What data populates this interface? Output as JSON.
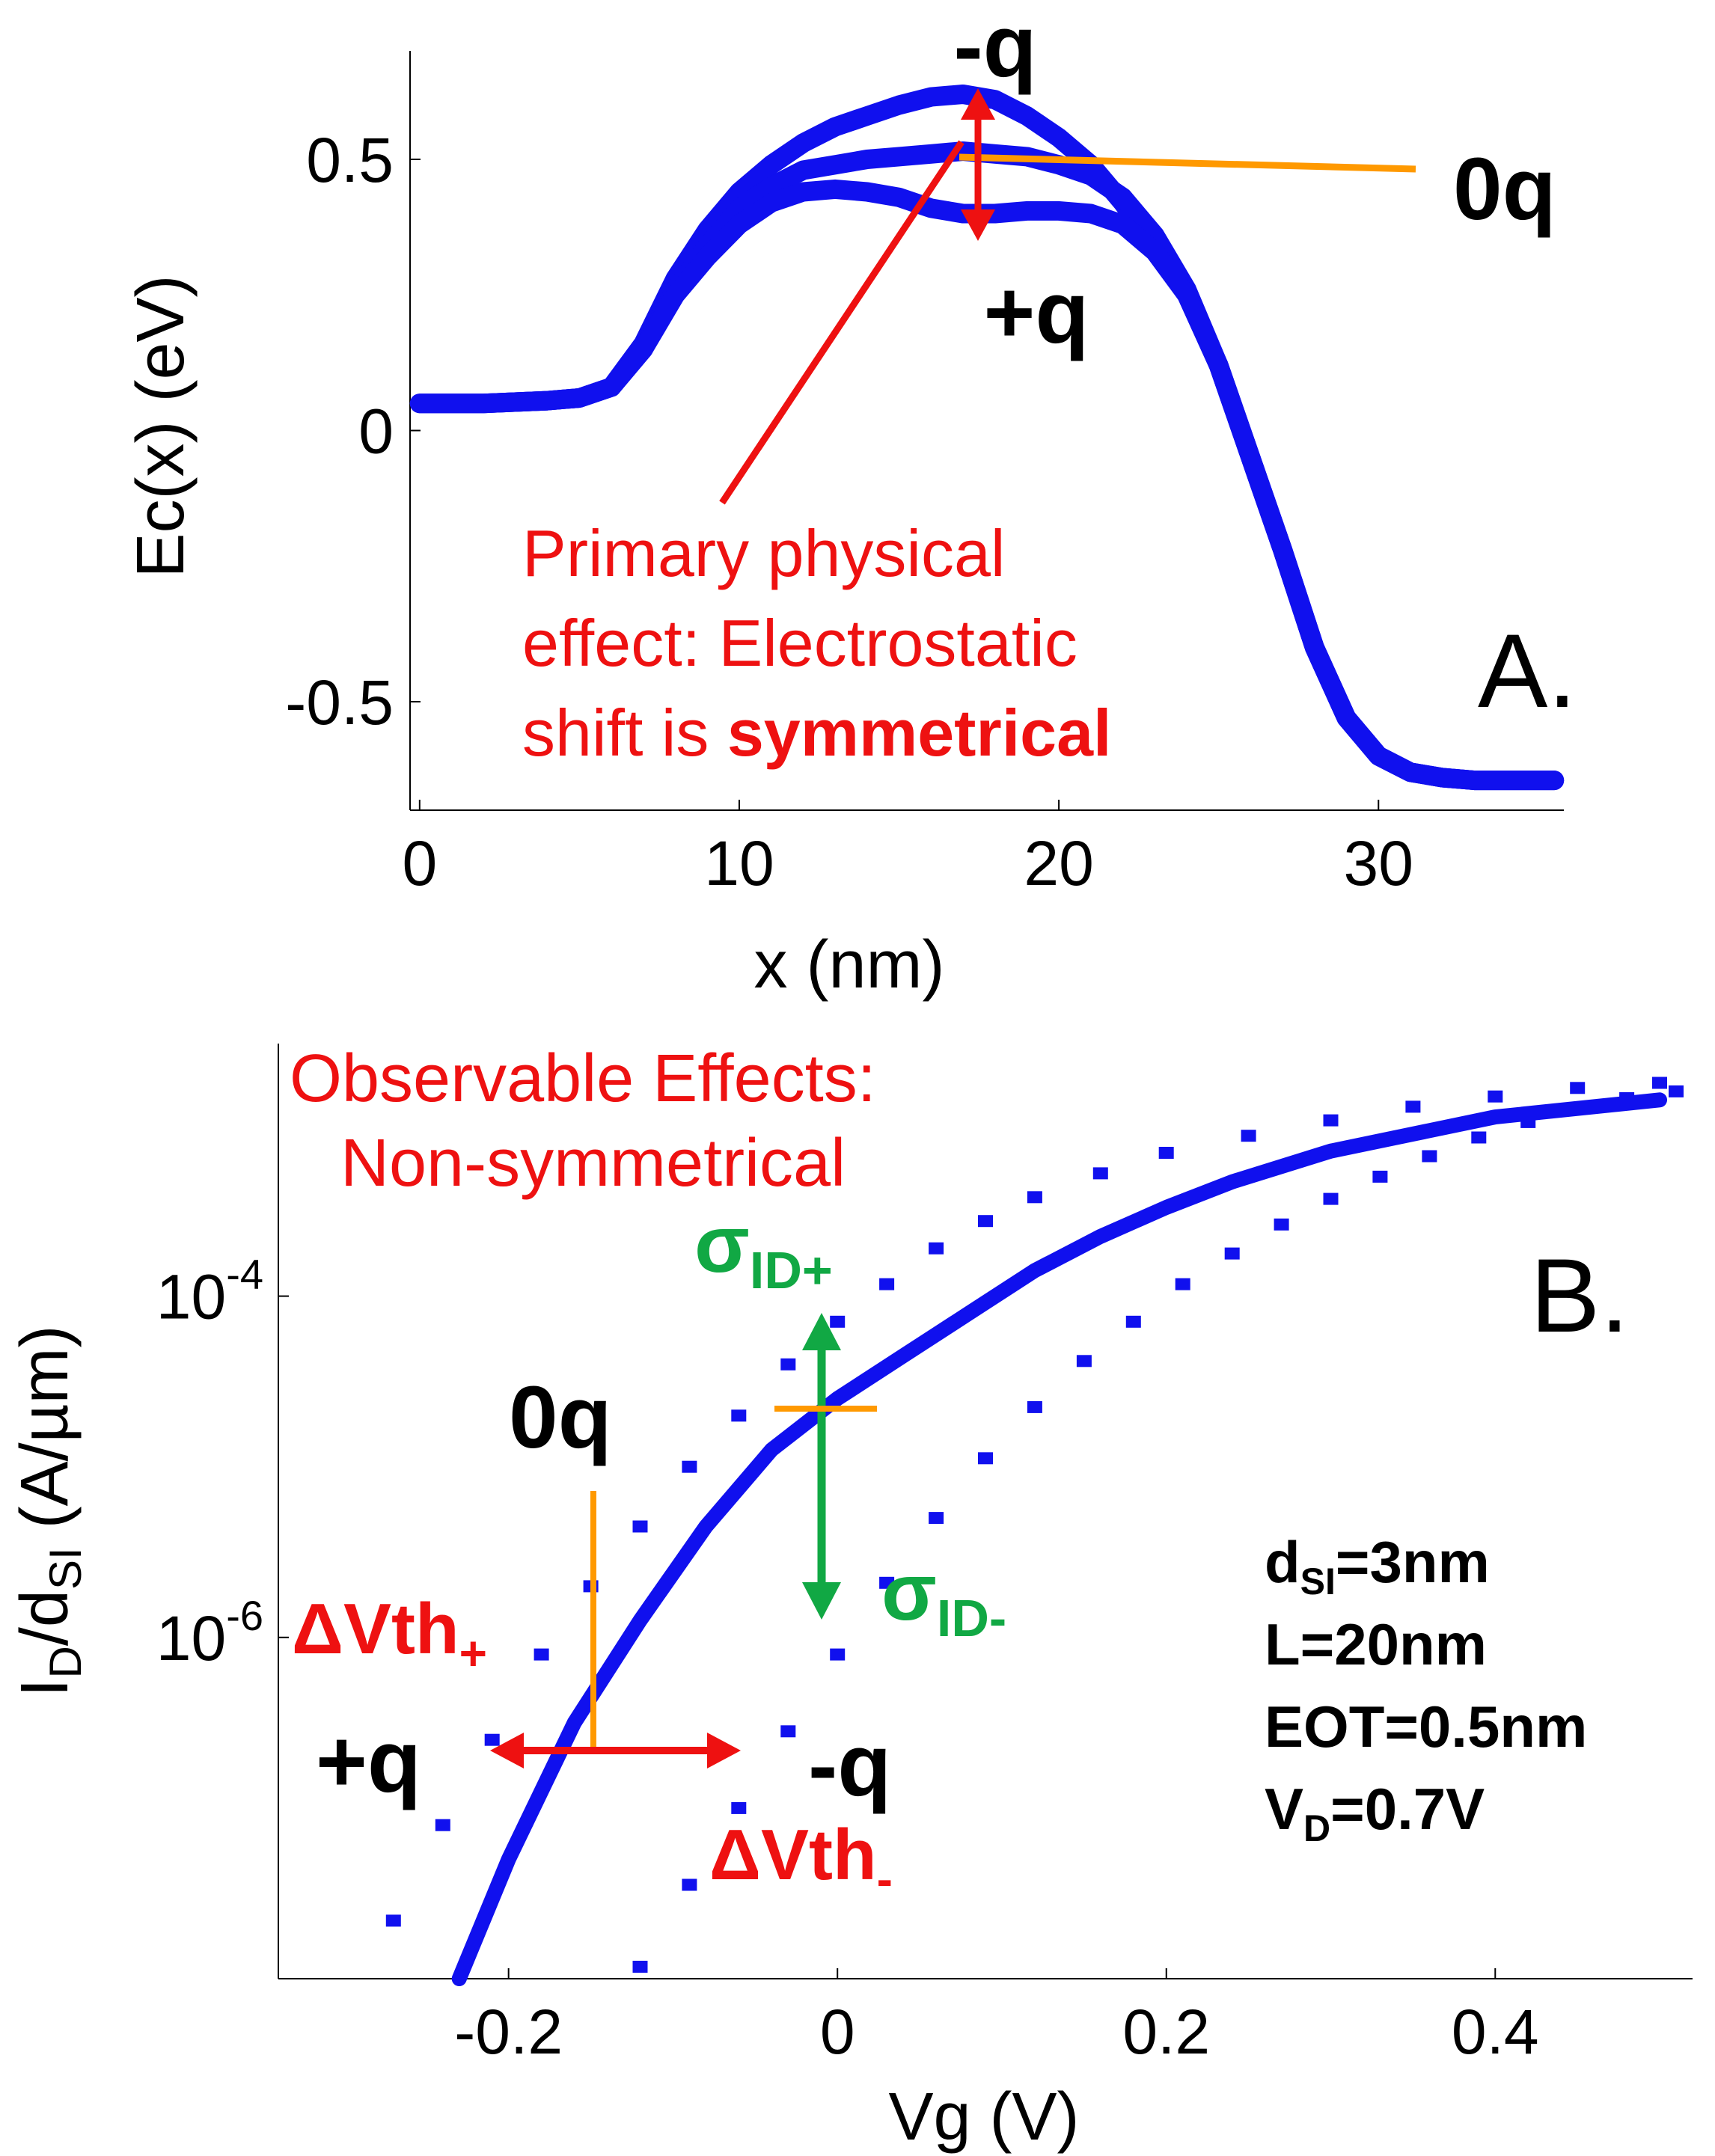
{
  "chart_data": [
    {
      "id": "A",
      "type": "line",
      "panel_label": "A.",
      "xlabel": "x (nm)",
      "ylabel": "Ec(x) (eV)",
      "xlim": [
        -0.3,
        35.8
      ],
      "ylim": [
        -0.7,
        0.7
      ],
      "xticks": [
        0,
        10,
        20,
        30
      ],
      "xtick_labels": [
        "0",
        "10",
        "20",
        "30"
      ],
      "yticks": [
        -0.5,
        0,
        0.5
      ],
      "ytick_labels": [
        "-0.5",
        "0",
        "0.5"
      ],
      "series": [
        {
          "name": "-q",
          "x": [
            0,
            2,
            4,
            5,
            6,
            7,
            8,
            9,
            10,
            11,
            12,
            13,
            14,
            15,
            16,
            17,
            18,
            19,
            20,
            21,
            22,
            23,
            24,
            25,
            26,
            27,
            28,
            29,
            30,
            31,
            32,
            33,
            34,
            35.5
          ],
          "y": [
            0.05,
            0.05,
            0.055,
            0.06,
            0.08,
            0.16,
            0.28,
            0.37,
            0.44,
            0.49,
            0.53,
            0.56,
            0.58,
            0.6,
            0.615,
            0.62,
            0.61,
            0.58,
            0.54,
            0.49,
            0.42,
            0.34,
            0.25,
            0.12,
            -0.05,
            -0.22,
            -0.4,
            -0.53,
            -0.6,
            -0.63,
            -0.64,
            -0.645,
            -0.645,
            -0.645
          ]
        },
        {
          "name": "0q",
          "x": [
            0,
            2,
            4,
            5,
            6,
            7,
            8,
            9,
            10,
            11,
            12,
            13,
            14,
            15,
            16,
            17,
            18,
            19,
            20,
            21,
            22,
            23,
            24,
            25,
            26,
            27,
            28,
            29,
            30,
            31,
            32,
            33,
            34,
            35.5
          ],
          "y": [
            0.05,
            0.05,
            0.055,
            0.06,
            0.08,
            0.15,
            0.26,
            0.34,
            0.41,
            0.45,
            0.48,
            0.49,
            0.5,
            0.505,
            0.51,
            0.515,
            0.51,
            0.505,
            0.49,
            0.47,
            0.43,
            0.36,
            0.26,
            0.12,
            -0.05,
            -0.22,
            -0.4,
            -0.53,
            -0.6,
            -0.63,
            -0.64,
            -0.645,
            -0.645,
            -0.645
          ]
        },
        {
          "name": "+q",
          "x": [
            0,
            2,
            4,
            5,
            6,
            7,
            8,
            9,
            10,
            11,
            12,
            13,
            14,
            15,
            16,
            17,
            18,
            19,
            20,
            21,
            22,
            23,
            24,
            25,
            26,
            27,
            28,
            29,
            30,
            31,
            32,
            33,
            34,
            35.5
          ],
          "y": [
            0.05,
            0.05,
            0.055,
            0.06,
            0.08,
            0.15,
            0.25,
            0.32,
            0.38,
            0.42,
            0.44,
            0.445,
            0.44,
            0.43,
            0.41,
            0.4,
            0.4,
            0.405,
            0.405,
            0.4,
            0.38,
            0.33,
            0.25,
            0.12,
            -0.05,
            -0.22,
            -0.4,
            -0.53,
            -0.6,
            -0.63,
            -0.64,
            -0.645,
            -0.645,
            -0.645
          ]
        }
      ],
      "annotations": {
        "minus_q": "-q",
        "zero_q": "0q",
        "plus_q": "+q",
        "effect_line1": "Primary physical",
        "effect_line2": "effect: Electrostatic",
        "effect_line3_normal": "shift is ",
        "effect_line3_bold": "symmetrical"
      }
    },
    {
      "id": "B",
      "type": "scatter",
      "panel_label": "B.",
      "xlabel": "Vg (V)",
      "ylabel_main": "I",
      "ylabel_sub1": "D",
      "ylabel_mid": "/d",
      "ylabel_sub2": "SI",
      "ylabel_tail": " (A/µm)",
      "yscale": "log",
      "xlim": [
        -0.34,
        0.52
      ],
      "log10_ylim": [
        -8.0,
        -2.52
      ],
      "xticks": [
        -0.2,
        0,
        0.2,
        0.4
      ],
      "xtick_labels": [
        "-0.2",
        "0",
        "0.2",
        "0.4"
      ],
      "yticks_log10": [
        -4,
        -6
      ],
      "ytick_base": "10",
      "ytick_exponents": [
        "-4",
        "-6"
      ],
      "series": [
        {
          "name": "0q",
          "style": "solid",
          "x": [
            -0.23,
            -0.2,
            -0.16,
            -0.12,
            -0.08,
            -0.04,
            0,
            0.04,
            0.08,
            0.12,
            0.16,
            0.2,
            0.24,
            0.3,
            0.4,
            0.5
          ],
          "log10_y": [
            -8.0,
            -7.3,
            -6.5,
            -5.9,
            -5.35,
            -4.9,
            -4.6,
            -4.35,
            -4.1,
            -3.85,
            -3.65,
            -3.48,
            -3.33,
            -3.15,
            -2.95,
            -2.85
          ]
        },
        {
          "name": "+q",
          "style": "dotted",
          "x": [
            -0.27,
            -0.24,
            -0.21,
            -0.18,
            -0.15,
            -0.12,
            -0.09,
            -0.06,
            -0.03,
            0,
            0.03,
            0.06,
            0.09,
            0.12,
            0.16,
            0.2,
            0.25,
            0.3,
            0.35,
            0.4,
            0.45,
            0.5
          ],
          "log10_y": [
            -7.66,
            -7.1,
            -6.6,
            -6.1,
            -5.7,
            -5.35,
            -5.0,
            -4.7,
            -4.4,
            -4.15,
            -3.93,
            -3.72,
            -3.56,
            -3.42,
            -3.28,
            -3.16,
            -3.06,
            -2.97,
            -2.89,
            -2.83,
            -2.78,
            -2.75
          ]
        },
        {
          "name": "-q",
          "style": "dotted",
          "x": [
            -0.12,
            -0.09,
            -0.06,
            -0.03,
            0,
            0.03,
            0.06,
            0.09,
            0.12,
            0.15,
            0.18,
            0.21,
            0.24,
            0.27,
            0.3,
            0.33,
            0.36,
            0.39,
            0.42,
            0.45,
            0.48,
            0.51
          ],
          "log10_y": [
            -7.93,
            -7.45,
            -7.0,
            -6.55,
            -6.1,
            -5.68,
            -5.3,
            -4.95,
            -4.65,
            -4.38,
            -4.15,
            -3.93,
            -3.75,
            -3.58,
            -3.43,
            -3.3,
            -3.18,
            -3.07,
            -2.98,
            -2.9,
            -2.84,
            -2.8
          ]
        }
      ],
      "annotations": {
        "title_line1": "Observable Effects:",
        "title_line2": "Non-symmetrical",
        "sigma_plus_main": "σ",
        "sigma_plus_sub": "ID+",
        "sigma_minus_main": "σ",
        "sigma_minus_sub": "ID-",
        "zero_q": "0q",
        "dvth_plus_main": "ΔVth",
        "dvth_plus_sub": "+",
        "dvth_minus_main": "ΔVth",
        "dvth_minus_sub": "-",
        "plus_q": "+q",
        "minus_q": "-q"
      },
      "params": {
        "dsi_main": "d",
        "dsi_sub": "SI",
        "dsi_val": "=3nm",
        "length": "L=20nm",
        "eot": "EOT=0.5nm",
        "vd_main": "V",
        "vd_sub": "D",
        "vd_val": "=0.7V"
      }
    }
  ],
  "colors": {
    "series": "#1010ee",
    "effect": "#ee1111",
    "sigma": "#11a844",
    "marker_line": "#ff9900",
    "text": "#000000"
  }
}
